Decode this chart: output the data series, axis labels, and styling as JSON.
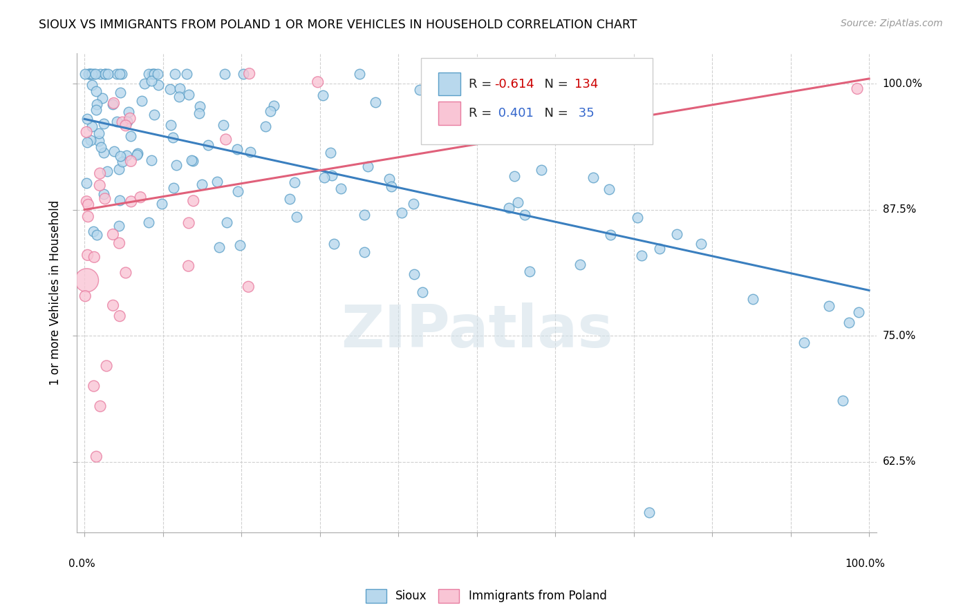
{
  "title": "SIOUX VS IMMIGRANTS FROM POLAND 1 OR MORE VEHICLES IN HOUSEHOLD CORRELATION CHART",
  "source": "Source: ZipAtlas.com",
  "ylabel": "1 or more Vehicles in Household",
  "ytick_labels": [
    "62.5%",
    "75.0%",
    "87.5%",
    "100.0%"
  ],
  "ytick_values": [
    0.625,
    0.75,
    0.875,
    1.0
  ],
  "legend_label1": "Sioux",
  "legend_label2": "Immigrants from Poland",
  "R1": -0.614,
  "N1": 134,
  "R2": 0.401,
  "N2": 35,
  "color_sioux_face": "#b8d8ed",
  "color_sioux_edge": "#5b9fc8",
  "color_poland_face": "#f9c5d5",
  "color_poland_edge": "#e87ca0",
  "color_trend_sioux": "#3a7fbf",
  "color_trend_poland": "#e0607a",
  "background_color": "#ffffff",
  "grid_color": "#d0d0d0",
  "watermark": "ZIPatlas",
  "sioux_trend_x": [
    0.0,
    1.0
  ],
  "sioux_trend_y": [
    0.965,
    0.795
  ],
  "poland_trend_x": [
    0.0,
    1.0
  ],
  "poland_trend_y": [
    0.875,
    1.005
  ],
  "xlim": [
    -0.01,
    1.01
  ],
  "ylim": [
    0.555,
    1.03
  ]
}
